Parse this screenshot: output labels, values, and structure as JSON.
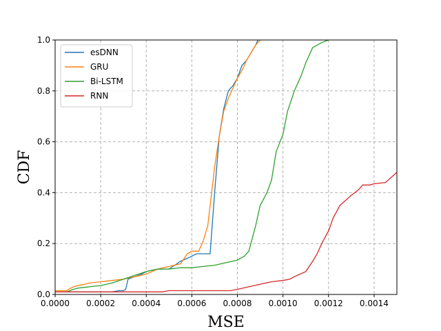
{
  "chart_data": {
    "type": "line",
    "title": "",
    "xlabel": "MSE",
    "ylabel": "CDF",
    "xlim": [
      0,
      0.0015
    ],
    "ylim": [
      0,
      1.0
    ],
    "grid": true,
    "grid_style": "dashed",
    "legend_position": "upper-left",
    "x_ticks": [
      "0.0000",
      "0.0002",
      "0.0004",
      "0.0006",
      "0.0008",
      "0.0010",
      "0.0012",
      "0.0014"
    ],
    "y_ticks": [
      "0.0",
      "0.2",
      "0.4",
      "0.6",
      "0.8",
      "1.0"
    ],
    "series": [
      {
        "name": "esDNN",
        "color": "#1f77b4",
        "x": [
          0.0,
          0.00025,
          0.00028,
          0.0003,
          0.00031,
          0.00032,
          0.00035,
          0.00038,
          0.0004,
          0.00045,
          0.0005,
          0.00055,
          0.0006,
          0.00062,
          0.00068,
          0.0007,
          0.00072,
          0.00074,
          0.00076,
          0.00078,
          0.0008,
          0.00082,
          0.00084,
          0.00086,
          0.00088,
          0.00089
        ],
        "y": [
          0.01,
          0.01,
          0.015,
          0.015,
          0.02,
          0.06,
          0.07,
          0.08,
          0.09,
          0.1,
          0.1,
          0.13,
          0.15,
          0.16,
          0.16,
          0.4,
          0.62,
          0.73,
          0.8,
          0.82,
          0.85,
          0.9,
          0.92,
          0.95,
          0.98,
          1.0
        ]
      },
      {
        "name": "GRU",
        "color": "#ff7f0e",
        "x": [
          0.0,
          5e-05,
          6e-05,
          8e-05,
          0.0001,
          0.00013,
          0.00015,
          0.0002,
          0.00025,
          0.0003,
          0.00035,
          0.0004,
          0.00045,
          0.0005,
          0.00055,
          0.00058,
          0.0006,
          0.00063,
          0.00065,
          0.00067,
          0.0007,
          0.00072,
          0.00074,
          0.00076,
          0.00078,
          0.0008,
          0.00082,
          0.00084,
          0.00086,
          0.00088,
          0.0009
        ],
        "y": [
          0.015,
          0.015,
          0.02,
          0.03,
          0.035,
          0.04,
          0.045,
          0.05,
          0.055,
          0.06,
          0.07,
          0.08,
          0.1,
          0.11,
          0.12,
          0.16,
          0.17,
          0.17,
          0.21,
          0.27,
          0.5,
          0.62,
          0.72,
          0.77,
          0.81,
          0.85,
          0.88,
          0.92,
          0.95,
          0.98,
          1.0
        ]
      },
      {
        "name": "Bi-LSTM",
        "color": "#2ca02c",
        "x": [
          0.0,
          5e-05,
          8e-05,
          0.0001,
          0.00015,
          0.0002,
          0.00025,
          0.0003,
          0.00035,
          0.0004,
          0.00045,
          0.0005,
          0.00055,
          0.0006,
          0.00065,
          0.0007,
          0.00075,
          0.0008,
          0.00083,
          0.00085,
          0.00088,
          0.0009,
          0.00093,
          0.00095,
          0.00097,
          0.001,
          0.00102,
          0.00105,
          0.00108,
          0.0011,
          0.00113,
          0.00117,
          0.0012
        ],
        "y": [
          0.01,
          0.01,
          0.02,
          0.025,
          0.03,
          0.035,
          0.045,
          0.06,
          0.075,
          0.09,
          0.1,
          0.1,
          0.105,
          0.105,
          0.11,
          0.115,
          0.125,
          0.135,
          0.15,
          0.17,
          0.27,
          0.35,
          0.4,
          0.45,
          0.56,
          0.63,
          0.72,
          0.8,
          0.86,
          0.91,
          0.97,
          0.99,
          1.0
        ]
      },
      {
        "name": "RNN",
        "color": "#d62728",
        "x": [
          0.0,
          0.0002,
          0.0004,
          0.00047,
          0.0005,
          0.0006,
          0.0007,
          0.00077,
          0.0008,
          0.00085,
          0.0009,
          0.00095,
          0.001,
          0.00103,
          0.00105,
          0.0011,
          0.00113,
          0.00115,
          0.00117,
          0.0012,
          0.00122,
          0.00125,
          0.0013,
          0.00133,
          0.00135,
          0.00138,
          0.0014,
          0.00145,
          0.0015
        ],
        "y": [
          0.01,
          0.01,
          0.01,
          0.01,
          0.015,
          0.015,
          0.015,
          0.015,
          0.02,
          0.03,
          0.04,
          0.05,
          0.055,
          0.06,
          0.07,
          0.09,
          0.13,
          0.16,
          0.2,
          0.25,
          0.3,
          0.35,
          0.39,
          0.41,
          0.43,
          0.43,
          0.435,
          0.44,
          0.48
        ]
      }
    ]
  }
}
